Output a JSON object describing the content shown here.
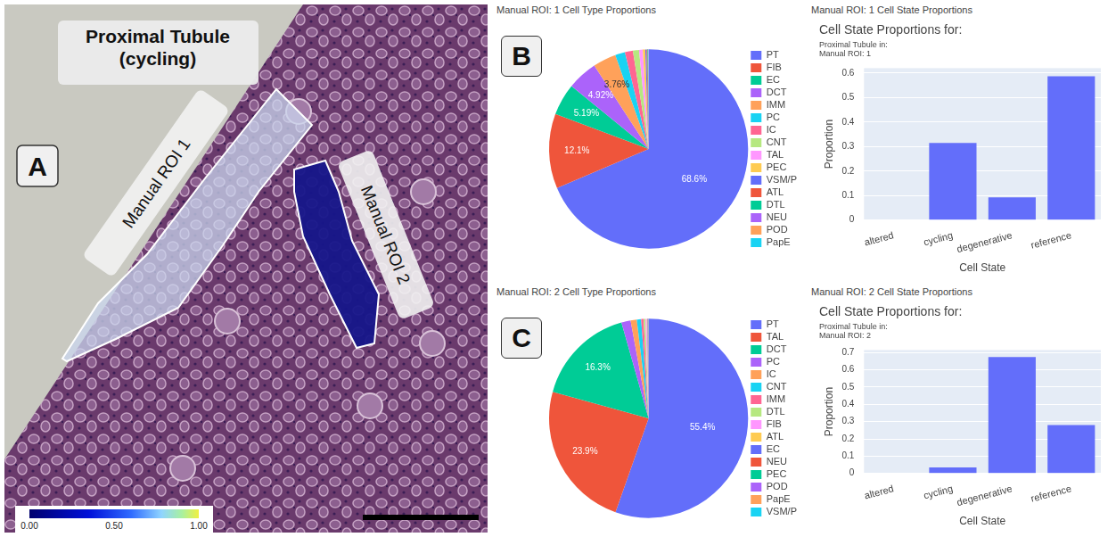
{
  "panel_a": {
    "letter": "A",
    "title": "Proximal Tubule (cycling)",
    "rois": [
      {
        "label": "Manual ROI 1",
        "color": "#c9d5ee"
      },
      {
        "label": "Manual ROI 2",
        "color": "#16168a"
      }
    ],
    "colorbar": {
      "range": [
        0,
        1
      ],
      "ticks": [
        {
          "value": 0,
          "label": "0.00"
        },
        {
          "value": 0.5,
          "label": "0.50"
        },
        {
          "value": 1,
          "label": "1.00"
        }
      ]
    }
  },
  "chart_data": [
    {
      "panel": "B",
      "header": "Manual ROI: 1 Cell Type Proportions",
      "type": "pie",
      "categories": [
        "PT",
        "FIB",
        "EC",
        "DCT",
        "IMM",
        "PC",
        "IC",
        "CNT",
        "TAL",
        "PEC",
        "VSM/P",
        "ATL",
        "DTL",
        "NEU",
        "POD",
        "PapE"
      ],
      "values": [
        68.6,
        12.1,
        5.19,
        4.92,
        3.76,
        1.6,
        1.3,
        1.0,
        0.6,
        0.4,
        0.2,
        0.15,
        0.1,
        0.04,
        0.02,
        0.02
      ],
      "colors": [
        "#636efa",
        "#EF553B",
        "#00cc96",
        "#ab63fa",
        "#FFA15A",
        "#19d3f3",
        "#FF6692",
        "#B6E880",
        "#FF97FF",
        "#FECB52",
        "#636efa",
        "#EF553B",
        "#00cc96",
        "#ab63fa",
        "#FFA15A",
        "#19d3f3"
      ],
      "data_labels": true,
      "value_labels": [
        "68.6%",
        "12.1%",
        "5.19%",
        "4.92%",
        "3.76%",
        null,
        null,
        null,
        null,
        null,
        null,
        null,
        null,
        null,
        null,
        null
      ],
      "legend": "right"
    },
    {
      "header": "Manual ROI: 1 Cell State Proportions",
      "type": "bar",
      "title": "Cell State Proportions for:",
      "subtitle": [
        "Proximal Tubule in:",
        "Manual ROI: 1"
      ],
      "x_label": "Cell State",
      "y_label": "Proportion",
      "categories": [
        "altered",
        "cycling",
        "degenerative",
        "reference"
      ],
      "values": [
        0,
        0.315,
        0.093,
        0.587
      ],
      "color": "#636efa",
      "ylim": [
        0,
        0.62
      ],
      "yticks": [
        0,
        0.1,
        0.2,
        0.3,
        0.4,
        0.5,
        0.6
      ],
      "grid": true
    },
    {
      "panel": "C",
      "header": "Manual ROI: 2 Cell Type Proportions",
      "type": "pie",
      "categories": [
        "PT",
        "TAL",
        "DCT",
        "PC",
        "IC",
        "CNT",
        "IMM",
        "DTL",
        "FIB",
        "ATL",
        "EC",
        "NEU",
        "PEC",
        "POD",
        "PapE",
        "VSM/P"
      ],
      "values": [
        55.4,
        23.9,
        16.3,
        1.5,
        1.0,
        0.7,
        0.4,
        0.3,
        0.2,
        0.1,
        0.08,
        0.05,
        0.03,
        0.02,
        0.01,
        0.01
      ],
      "colors": [
        "#636efa",
        "#EF553B",
        "#00cc96",
        "#ab63fa",
        "#FFA15A",
        "#19d3f3",
        "#FF6692",
        "#B6E880",
        "#FF97FF",
        "#FECB52",
        "#636efa",
        "#EF553B",
        "#00cc96",
        "#ab63fa",
        "#FFA15A",
        "#19d3f3"
      ],
      "data_labels": true,
      "value_labels": [
        "55.4%",
        "23.9%",
        "16.3%",
        null,
        null,
        null,
        null,
        null,
        null,
        null,
        null,
        null,
        null,
        null,
        null,
        null
      ],
      "legend": "right"
    },
    {
      "header": "Manual ROI: 2 Cell State Proportions",
      "type": "bar",
      "title": "Cell State Proportions for:",
      "subtitle": [
        "Proximal Tubule in:",
        "Manual ROI: 2"
      ],
      "x_label": "Cell State",
      "y_label": "Proportion",
      "categories": [
        "altered",
        "cycling",
        "degenerative",
        "reference"
      ],
      "values": [
        0,
        0.035,
        0.675,
        0.28
      ],
      "color": "#636efa",
      "ylim": [
        0,
        0.715
      ],
      "yticks": [
        0,
        0.1,
        0.2,
        0.3,
        0.4,
        0.5,
        0.6,
        0.7
      ],
      "grid": true
    }
  ]
}
